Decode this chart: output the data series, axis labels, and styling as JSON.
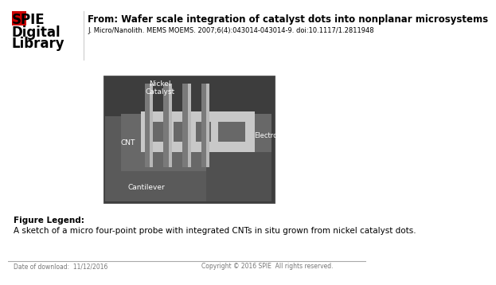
{
  "bg_color": "#ffffff",
  "title_text": "From: Wafer scale integration of catalyst dots into nonplanar microsystems",
  "subtitle_text": "J. Micro/Nanolith. MEMS MOEMS. 2007;6(4):043014-043014-9. doi:10.1117/1.2811948",
  "figure_legend_label": "Figure Legend:",
  "figure_legend_text": "A sketch of a micro four-point probe with integrated CNTs in situ grown from nickel catalyst dots.",
  "footer_left": "Date of download:  11/12/2016",
  "footer_right": "Copyright © 2016 SPIE  All rights reserved.",
  "spie_text": [
    "SPIE",
    "Digital",
    "Library"
  ],
  "title_fontsize": 8.5,
  "subtitle_fontsize": 6.0,
  "legend_label_fontsize": 7.5,
  "legend_text_fontsize": 7.5,
  "footer_fontsize": 5.5,
  "spie_fontsize": 12,
  "spie_red": "#cc0000",
  "dark_bg": "#3d3d3d",
  "cantilever_color": "#5a5a5a",
  "upper_platform_color": "#686868",
  "electrode_color": "#c8c8c8",
  "pillar_dark": "#7a7a7a",
  "pillar_light": "#b8b8b8",
  "text_color_white": "#ffffff",
  "divider_color": "#cccccc",
  "footer_line_color": "#aaaaaa",
  "footer_text_color": "#777777"
}
